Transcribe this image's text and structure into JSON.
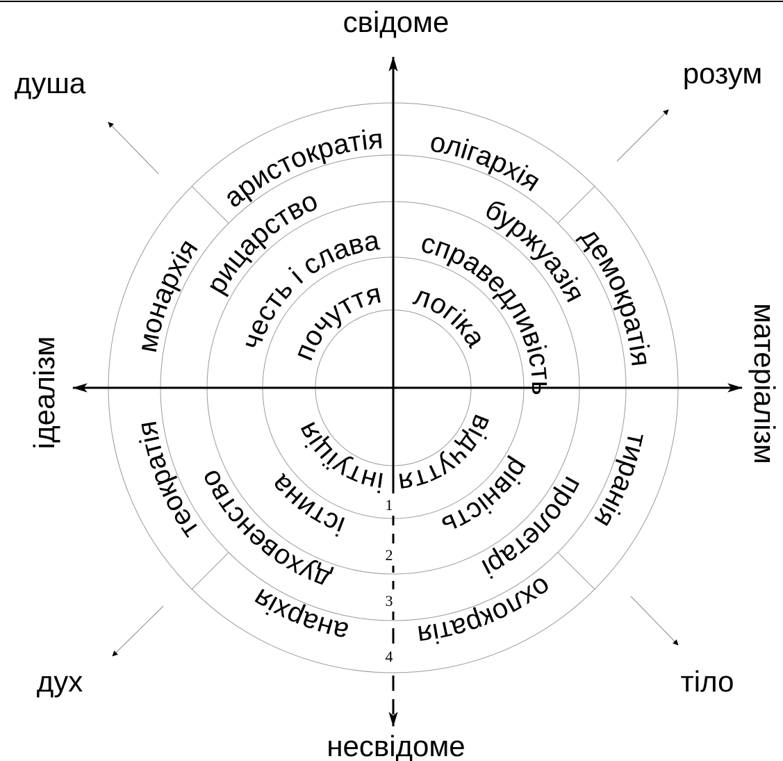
{
  "axes": {
    "top": "свідоме",
    "bottom": "несвідоме",
    "left": "ідеалізм",
    "right": "матеріалізм"
  },
  "diagonals": {
    "top_left": "душа",
    "top_right": "розум",
    "bottom_left": "дух",
    "bottom_right": "тіло"
  },
  "rings": [
    {
      "labels": [
        "почуття",
        "логіка",
        "відчуття",
        "інтуїція"
      ]
    },
    {
      "labels": [
        "честь і слава",
        "справедливість",
        "рівність",
        "істина"
      ]
    },
    {
      "labels": [
        "рицарство",
        "буржуазія",
        "пролетарі",
        "духовенство"
      ]
    },
    {
      "labels": [
        "аристократія",
        "олігархія",
        "демократія",
        "тиранія",
        "охлократія",
        "анархія",
        "теократія",
        "монархія"
      ]
    }
  ],
  "ring_numbers": [
    1,
    2,
    3,
    4
  ]
}
